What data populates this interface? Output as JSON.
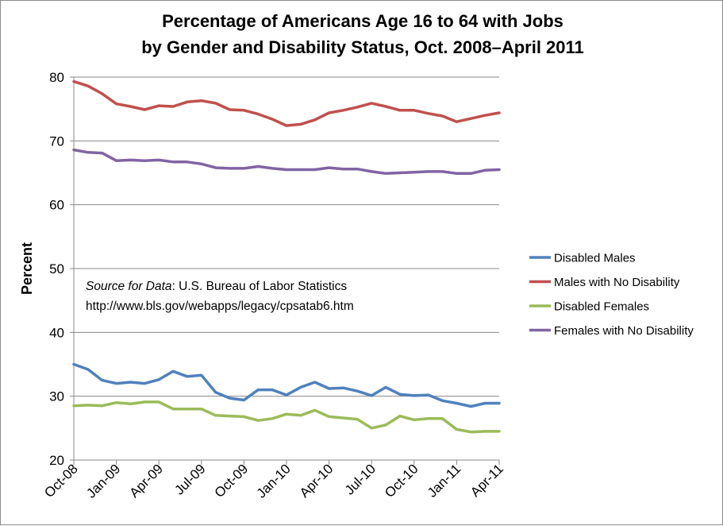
{
  "chart_data": {
    "type": "line",
    "title": [
      "Percentage of Americans Age 16 to 64 with Jobs",
      "by Gender and Disability Status, Oct. 2008–April 2011"
    ],
    "xlabel": "",
    "ylabel": "Percent",
    "ylim": [
      20,
      80
    ],
    "yticks": [
      20,
      30,
      40,
      50,
      60,
      70,
      80
    ],
    "grid": "horizontal",
    "legend_position": "right",
    "x": [
      "Oct-08",
      "Nov-08",
      "Dec-08",
      "Jan-09",
      "Feb-09",
      "Mar-09",
      "Apr-09",
      "May-09",
      "Jun-09",
      "Jul-09",
      "Aug-09",
      "Sep-09",
      "Oct-09",
      "Nov-09",
      "Dec-09",
      "Jan-10",
      "Feb-10",
      "Mar-10",
      "Apr-10",
      "May-10",
      "Jun-10",
      "Jul-10",
      "Aug-10",
      "Sep-10",
      "Oct-10",
      "Nov-10",
      "Dec-10",
      "Jan-11",
      "Feb-11",
      "Mar-11",
      "Apr-11"
    ],
    "xtick_labels": [
      "Oct-08",
      "Jan-09",
      "Apr-09",
      "Jul-09",
      "Oct-09",
      "Jan-10",
      "Apr-10",
      "Jul-10",
      "Oct-10",
      "Jan-11",
      "Apr-11"
    ],
    "series": [
      {
        "name": "Disabled Males",
        "color": "#4F81BD",
        "values": [
          35.0,
          34.2,
          32.5,
          32.0,
          32.2,
          32.0,
          32.6,
          33.9,
          33.1,
          33.3,
          30.6,
          29.7,
          29.4,
          31.0,
          31.0,
          30.2,
          31.4,
          32.2,
          31.2,
          31.3,
          30.8,
          30.1,
          31.4,
          30.3,
          30.1,
          30.2,
          29.3,
          28.9,
          28.4,
          28.9,
          28.9
        ]
      },
      {
        "name": "Males with No Disability",
        "color": "#C0504D",
        "values": [
          79.3,
          78.6,
          77.4,
          75.8,
          75.4,
          74.9,
          75.5,
          75.4,
          76.1,
          76.3,
          75.9,
          74.9,
          74.8,
          74.2,
          73.4,
          72.4,
          72.6,
          73.3,
          74.4,
          74.8,
          75.3,
          75.9,
          75.4,
          74.8,
          74.8,
          74.3,
          73.9,
          73.0,
          73.5,
          74.0,
          74.4
        ]
      },
      {
        "name": "Disabled Females",
        "color": "#9BBB59",
        "values": [
          28.5,
          28.6,
          28.5,
          29.0,
          28.8,
          29.1,
          29.1,
          28.0,
          28.0,
          28.0,
          27.0,
          26.9,
          26.8,
          26.2,
          26.5,
          27.2,
          27.0,
          27.8,
          26.8,
          26.6,
          26.4,
          25.0,
          25.5,
          26.9,
          26.3,
          26.5,
          26.5,
          24.8,
          24.4,
          24.5,
          24.5
        ]
      },
      {
        "name": "Females with No Disability",
        "color": "#8064A2",
        "values": [
          68.6,
          68.2,
          68.1,
          66.9,
          67.0,
          66.9,
          67.0,
          66.7,
          66.7,
          66.4,
          65.8,
          65.7,
          65.7,
          66.0,
          65.7,
          65.5,
          65.5,
          65.5,
          65.8,
          65.6,
          65.6,
          65.2,
          64.9,
          65.0,
          65.1,
          65.2,
          65.2,
          64.9,
          64.9,
          65.4,
          65.5
        ]
      }
    ],
    "annotation": {
      "source_label": "Source for Data",
      "source_text": ": U.S. Bureau of Labor Statistics",
      "url": "http://www.bls.gov/webapps/legacy/cpsatab6.htm"
    }
  }
}
